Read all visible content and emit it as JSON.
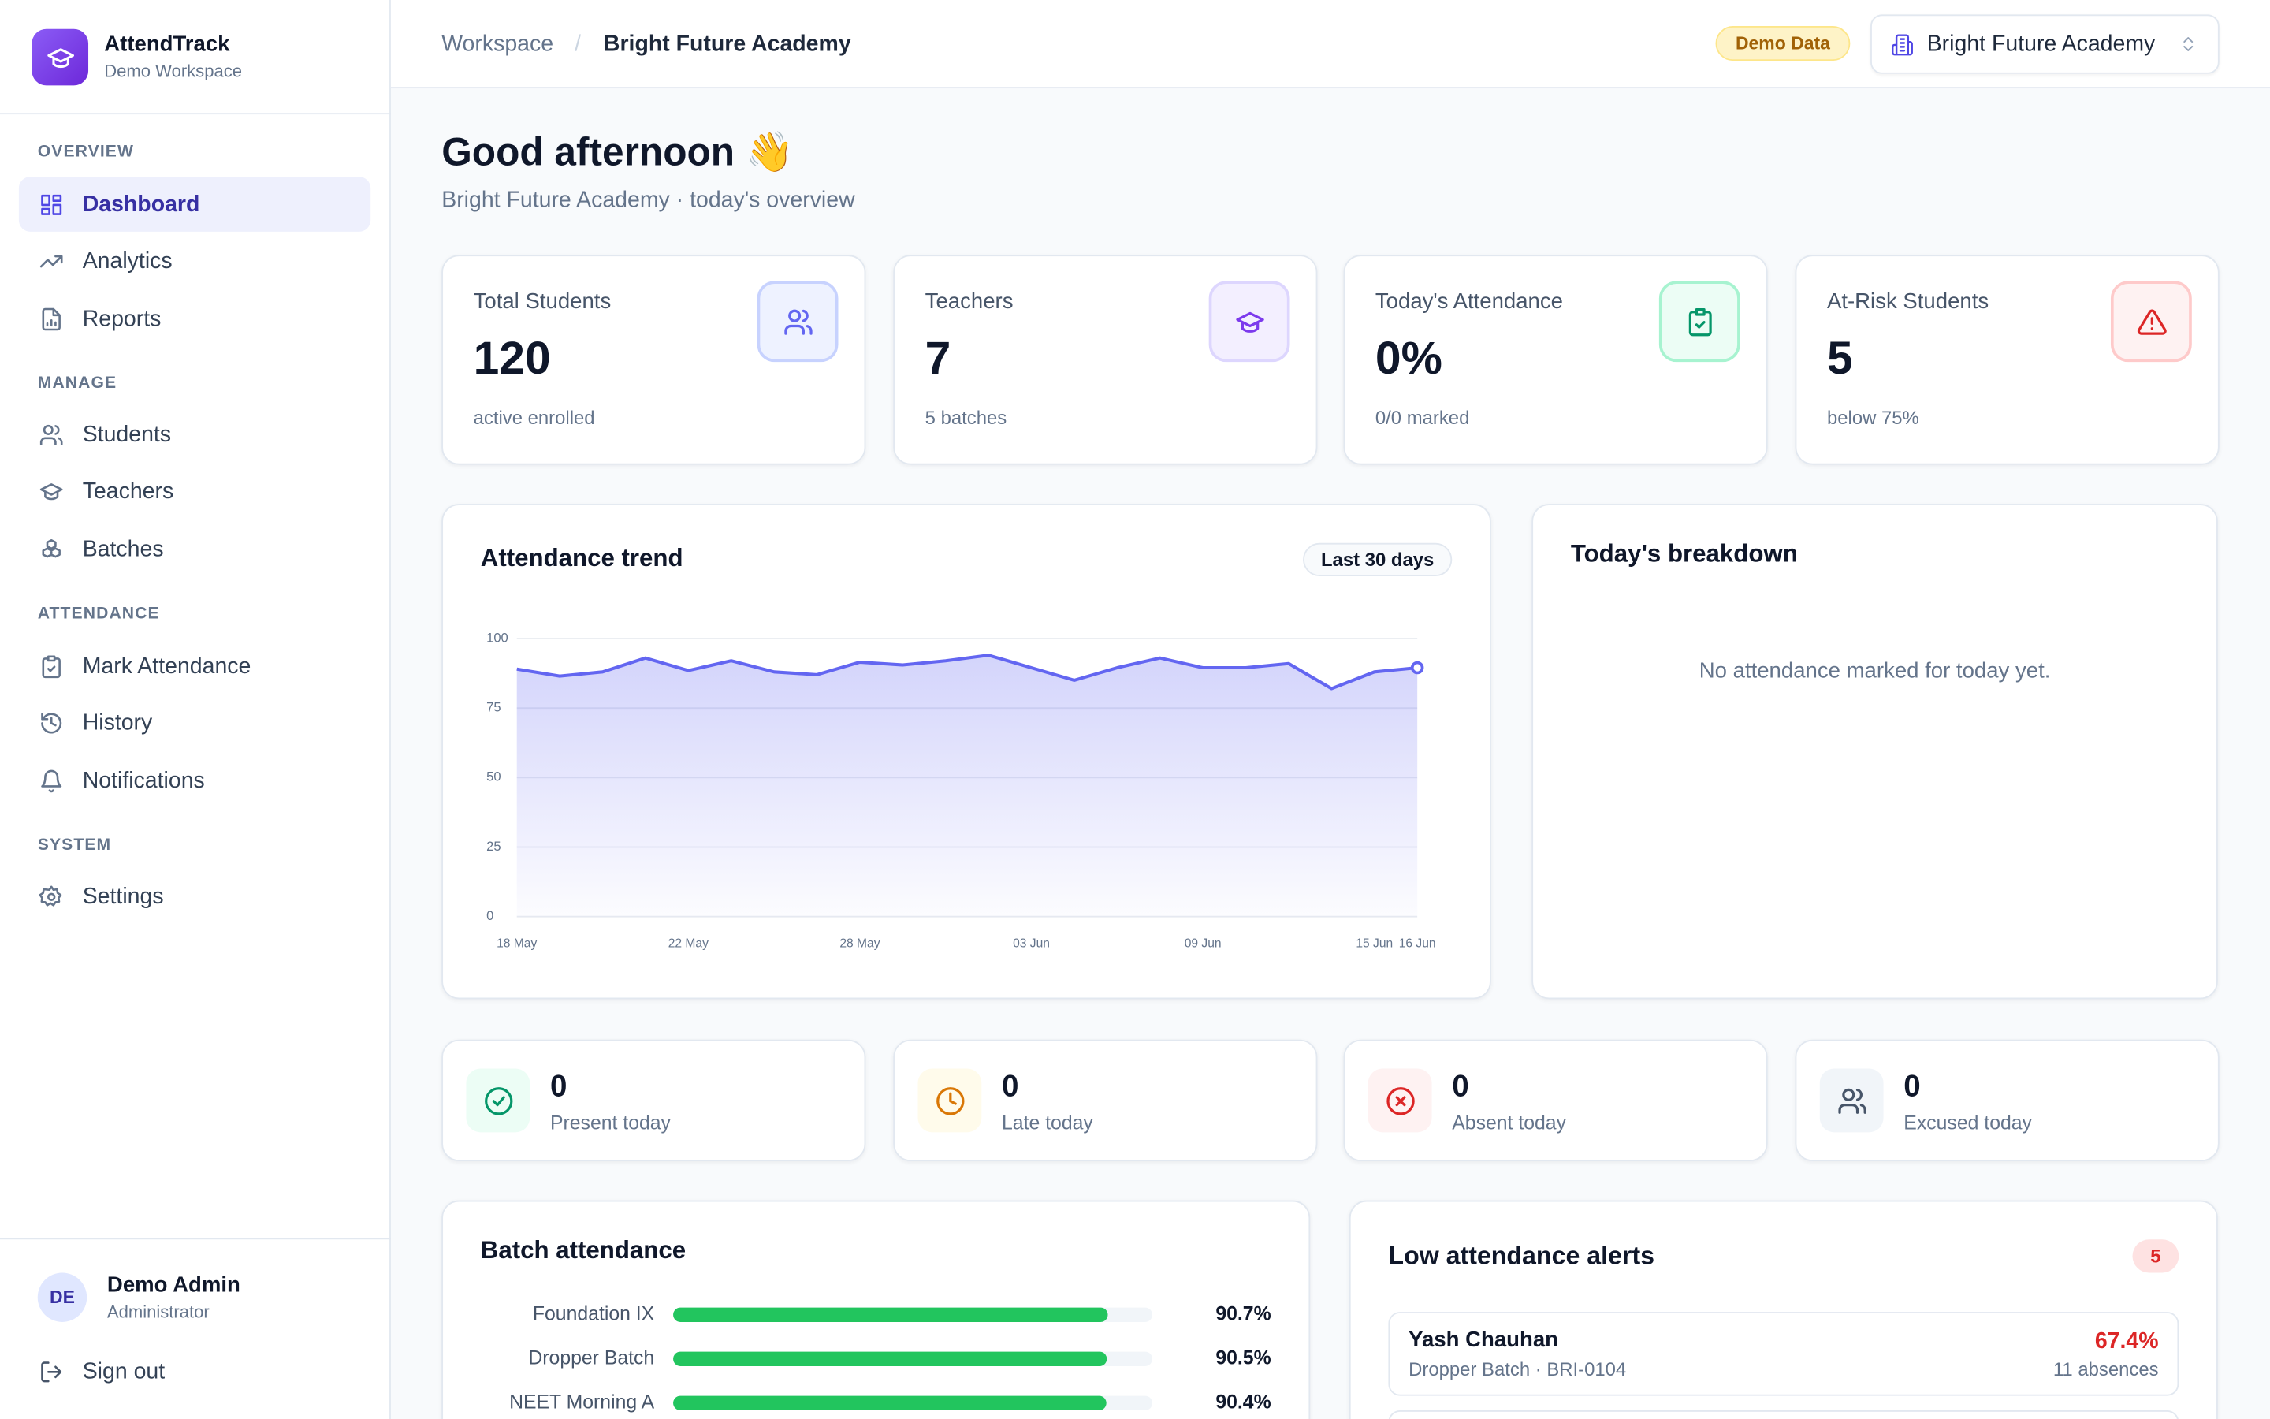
{
  "sidebar": {
    "brand": "AttendTrack",
    "workspace": "Demo Workspace",
    "sections": [
      {
        "title": "OVERVIEW",
        "items": [
          "Dashboard",
          "Analytics",
          "Reports"
        ]
      },
      {
        "title": "MANAGE",
        "items": [
          "Students",
          "Teachers",
          "Batches"
        ]
      },
      {
        "title": "ATTENDANCE",
        "items": [
          "Mark Attendance",
          "History",
          "Notifications"
        ]
      },
      {
        "title": "SYSTEM",
        "items": [
          "Settings"
        ]
      }
    ],
    "user": {
      "initials": "DE",
      "name": "Demo Admin",
      "role": "Administrator"
    },
    "sign_out": "Sign out"
  },
  "header": {
    "breadcrumb": [
      "Workspace",
      "/",
      "Bright Future Academy"
    ],
    "badge": "Demo Data",
    "selector": "Bright Future Academy"
  },
  "greeting": {
    "title": "Good afternoon 👋",
    "subtitle": "Bright Future Academy · today's overview"
  },
  "stats": [
    {
      "label": "Total Students",
      "value": "120",
      "note": "active enrolled"
    },
    {
      "label": "Teachers",
      "value": "7",
      "note": "5 batches"
    },
    {
      "label": "Today's Attendance",
      "value": "0%",
      "note": "0/0 marked"
    },
    {
      "label": "At-Risk Students",
      "value": "5",
      "note": "below 75%"
    }
  ],
  "chart_data": [
    {
      "type": "area",
      "title": "Attendance trend",
      "badge": "Last 30 days",
      "categories": [
        "18 May",
        null,
        null,
        null,
        "22 May",
        null,
        null,
        null,
        "28 May",
        null,
        null,
        null,
        "03 Jun",
        null,
        null,
        null,
        "09 Jun",
        null,
        null,
        null,
        "15 Jun",
        "16 Jun"
      ],
      "values": [
        89,
        86.5,
        88,
        93,
        88.5,
        92,
        88,
        87,
        91.5,
        90.5,
        92,
        94,
        89.5,
        85,
        89.5,
        93,
        89.5,
        89.5,
        91,
        82,
        88,
        89.5
      ],
      "color": "#6366f1",
      "ylim": [
        0,
        100
      ],
      "yticks": [
        0,
        25,
        50,
        75,
        100
      ],
      "grid": true
    },
    {
      "type": "hbar",
      "title": "Batch attendance",
      "categories": [
        "Foundation IX",
        "Dropper Batch",
        "NEET Morning A"
      ],
      "values": [
        90.7,
        90.5,
        90.4
      ],
      "value_labels": [
        "90.7%",
        "90.5%",
        "90.4%"
      ],
      "xlim": [
        0,
        100
      ],
      "color": "#22c55e"
    }
  ],
  "breakdown": {
    "title": "Today's breakdown",
    "empty": "No attendance marked for today yet."
  },
  "today_counts": [
    {
      "value": "0",
      "label": "Present today"
    },
    {
      "value": "0",
      "label": "Late today"
    },
    {
      "value": "0",
      "label": "Absent today"
    },
    {
      "value": "0",
      "label": "Excused today"
    }
  ],
  "alerts": {
    "title": "Low attendance alerts",
    "count": "5",
    "items": [
      {
        "name": "Yash Chauhan",
        "detail": "Dropper Batch · BRI-0104",
        "rate": "67.4%",
        "absences": "11 absences"
      }
    ]
  }
}
